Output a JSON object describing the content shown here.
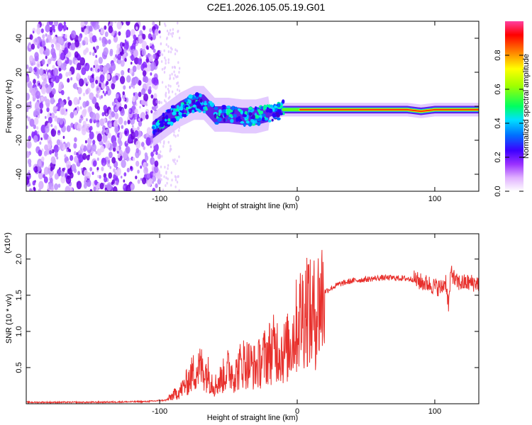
{
  "title": "C2E1.2026.105.05.19.G01",
  "colors": {
    "snr_line": "#e8302c",
    "background": "#ffffff",
    "axis": "#000000"
  },
  "chart_data": [
    {
      "type": "heatmap",
      "xlabel": "Height of straight line (km)",
      "ylabel": "Frequency (Hz)",
      "xlim": [
        -197,
        132
      ],
      "ylim": [
        -50,
        50
      ],
      "xticks": [
        {
          "v": -100,
          "label": "-100"
        },
        {
          "v": 0,
          "label": "0"
        },
        {
          "v": 100,
          "label": "100"
        }
      ],
      "yticks": [
        {
          "v": 40,
          "label": "40"
        },
        {
          "v": 20,
          "label": "20"
        },
        {
          "v": 0,
          "label": "0"
        },
        {
          "v": -20,
          "label": "-20"
        },
        {
          "v": -40,
          "label": "-40"
        }
      ],
      "colorbar": {
        "label": "Normalized spectral amplitude",
        "range": [
          0,
          1
        ],
        "ticks": [
          {
            "v": 0.0,
            "label": "0.0"
          },
          {
            "v": 0.2,
            "label": "0.2"
          },
          {
            "v": 0.4,
            "label": "0.4"
          },
          {
            "v": 0.6,
            "label": "0.6"
          },
          {
            "v": 0.8,
            "label": "0.8"
          }
        ]
      },
      "signal_track": {
        "x": [
          -105,
          -95,
          -85,
          -75,
          -68,
          -60,
          -50,
          -40,
          -30,
          -20,
          -10,
          0,
          20,
          40,
          60,
          80,
          90,
          100,
          110,
          120,
          132
        ],
        "freq": [
          -14,
          -8,
          -2,
          2,
          2,
          -5,
          -5,
          -6,
          -6,
          -4,
          -2,
          -2,
          -2,
          -2,
          -2,
          -2,
          -3,
          -2,
          -2,
          -2,
          -2
        ]
      }
    },
    {
      "type": "line",
      "xlabel": "Height of straight line (km)",
      "ylabel": "SNR (10 * v/v)",
      "scale_note": "(x10⁴)",
      "xlim": [
        -197,
        132
      ],
      "ylim": [
        0,
        2.35
      ],
      "xticks": [
        {
          "v": -100,
          "label": "-100"
        },
        {
          "v": 0,
          "label": "0"
        },
        {
          "v": 100,
          "label": "100"
        }
      ],
      "yticks": [
        {
          "v": 0.5,
          "label": "0.5"
        },
        {
          "v": 1.0,
          "label": "1.0"
        },
        {
          "v": 1.5,
          "label": "1.5"
        },
        {
          "v": 2.0,
          "label": "2.0"
        }
      ],
      "series": [
        {
          "name": "SNR",
          "x": [
            -197,
            -150,
            -110,
            -95,
            -90,
            -85,
            -80,
            -75,
            -70,
            -65,
            -60,
            -55,
            -50,
            -45,
            -40,
            -35,
            -30,
            -25,
            -20,
            -15,
            -10,
            -5,
            0,
            5,
            8,
            10,
            15,
            20,
            25,
            30,
            40,
            50,
            60,
            70,
            80,
            85,
            90,
            95,
            100,
            105,
            108,
            110,
            112,
            115,
            120,
            132
          ],
          "values": [
            0.02,
            0.02,
            0.03,
            0.05,
            0.12,
            0.18,
            0.3,
            0.45,
            0.5,
            0.42,
            0.25,
            0.35,
            0.48,
            0.4,
            0.58,
            0.55,
            0.5,
            0.62,
            0.72,
            0.78,
            0.7,
            0.82,
            1.1,
            1.3,
            1.4,
            1.15,
            1.35,
            1.55,
            1.6,
            1.65,
            1.7,
            1.72,
            1.74,
            1.74,
            1.73,
            1.72,
            1.68,
            1.66,
            1.62,
            1.6,
            1.7,
            1.35,
            1.85,
            1.68,
            1.67,
            1.67
          ]
        }
      ]
    }
  ]
}
